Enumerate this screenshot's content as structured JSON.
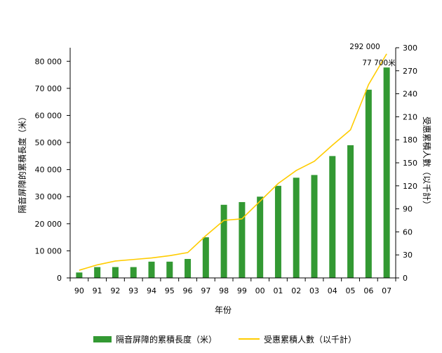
{
  "chart_data": {
    "type": "bar",
    "categories": [
      "90",
      "91",
      "92",
      "93",
      "94",
      "95",
      "96",
      "97",
      "98",
      "99",
      "00",
      "01",
      "02",
      "03",
      "04",
      "05",
      "06",
      "07"
    ],
    "series": [
      {
        "name": "隔音屏障的累積長度（米）",
        "type": "bar",
        "axis": "left",
        "color": "#339933",
        "values": [
          2000,
          4000,
          4000,
          4000,
          6000,
          6000,
          7000,
          15000,
          27000,
          28000,
          30000,
          34000,
          37000,
          38000,
          45000,
          49000,
          69500,
          77700
        ]
      },
      {
        "name": "受惠累積人數（以千計）",
        "type": "line",
        "axis": "right",
        "color": "#ffcc00",
        "values": [
          10,
          17,
          22,
          24,
          26,
          29,
          33,
          55,
          75,
          77,
          100,
          123,
          140,
          152,
          173,
          193,
          252,
          292
        ]
      }
    ],
    "xlabel": "年份",
    "ylabel": "隔音屏障的累積長度（米）",
    "y2label": "受惠累積人數（以千計）",
    "ylim": [
      0,
      85000
    ],
    "y2lim": [
      0,
      300
    ],
    "yticks": [
      "0",
      "10 000",
      "20 000",
      "30 000",
      "40 000",
      "50 000",
      "60 000",
      "70 000",
      "80 000"
    ],
    "y2ticks": [
      "0",
      "30",
      "60",
      "90",
      "120",
      "150",
      "180",
      "210",
      "240",
      "270",
      "300"
    ],
    "annotations": {
      "line_end_label": "292 000",
      "bar_end_label": "77 700米"
    },
    "legend_position": "bottom",
    "grid": false
  }
}
